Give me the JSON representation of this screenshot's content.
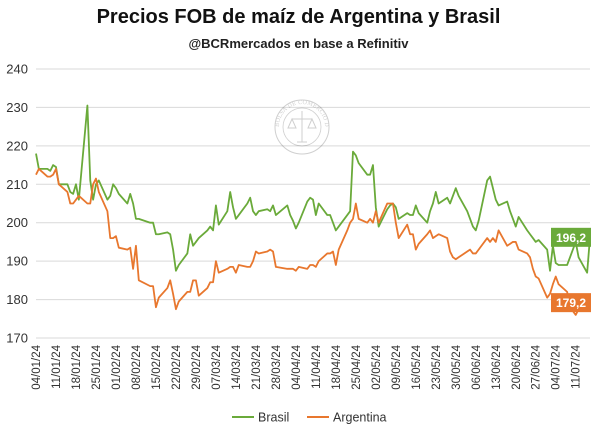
{
  "header": {
    "title": "Precios FOB de maíz de Argentina y Brasil",
    "subtitle": "@BCRmercados en base a Refinitiv"
  },
  "watermark": {
    "text": "BOLSA DE COMERCIO DE ROSARIO"
  },
  "chart_data": {
    "type": "line",
    "title": "Precios FOB de maíz de Argentina y Brasil",
    "xlabel": "",
    "ylabel": "",
    "ylim": [
      170,
      240
    ],
    "yticks": [
      170,
      180,
      190,
      200,
      210,
      220,
      230,
      240
    ],
    "x_start": "2024-01-04",
    "x_end": "2024-07-16",
    "x_ticks": [
      "04/01/24",
      "11/01/24",
      "18/01/24",
      "25/01/24",
      "01/02/24",
      "08/02/24",
      "15/02/24",
      "22/02/24",
      "29/02/24",
      "07/03/24",
      "14/03/24",
      "21/03/24",
      "28/03/24",
      "04/04/24",
      "11/04/24",
      "18/04/24",
      "25/04/24",
      "02/05/24",
      "09/05/24",
      "16/05/24",
      "23/05/24",
      "30/05/24",
      "06/06/24",
      "13/06/24",
      "20/06/24",
      "27/06/24",
      "04/07/24",
      "11/07/24"
    ],
    "grid": "horizontal",
    "legend_position": "bottom",
    "series": [
      {
        "name": "Brasil",
        "color": "#6aaa3a",
        "end_label": "196,2",
        "points": [
          [
            "2024-01-04",
            218
          ],
          [
            "2024-01-05",
            214
          ],
          [
            "2024-01-08",
            214
          ],
          [
            "2024-01-09",
            213.5
          ],
          [
            "2024-01-10",
            215
          ],
          [
            "2024-01-11",
            214.5
          ],
          [
            "2024-01-12",
            210
          ],
          [
            "2024-01-15",
            210
          ],
          [
            "2024-01-16",
            208
          ],
          [
            "2024-01-17",
            207.5
          ],
          [
            "2024-01-18",
            210
          ],
          [
            "2024-01-19",
            206
          ],
          [
            "2024-01-22",
            230.5
          ],
          [
            "2024-01-23",
            211
          ],
          [
            "2024-01-24",
            206
          ],
          [
            "2024-01-25",
            210
          ],
          [
            "2024-01-26",
            211
          ],
          [
            "2024-01-29",
            206
          ],
          [
            "2024-01-30",
            207
          ],
          [
            "2024-01-31",
            210
          ],
          [
            "2024-02-01",
            209
          ],
          [
            "2024-02-02",
            207.5
          ],
          [
            "2024-02-05",
            205
          ],
          [
            "2024-02-06",
            207.5
          ],
          [
            "2024-02-07",
            205
          ],
          [
            "2024-02-08",
            201
          ],
          [
            "2024-02-09",
            201
          ],
          [
            "2024-02-13",
            200
          ],
          [
            "2024-02-14",
            200
          ],
          [
            "2024-02-15",
            197
          ],
          [
            "2024-02-16",
            197
          ],
          [
            "2024-02-19",
            197.5
          ],
          [
            "2024-02-20",
            197
          ],
          [
            "2024-02-21",
            193
          ],
          [
            "2024-02-22",
            187.5
          ],
          [
            "2024-02-23",
            189
          ],
          [
            "2024-02-26",
            192
          ],
          [
            "2024-02-27",
            197
          ],
          [
            "2024-02-28",
            194
          ],
          [
            "2024-02-29",
            195
          ],
          [
            "2024-03-01",
            196
          ],
          [
            "2024-03-04",
            198
          ],
          [
            "2024-03-05",
            199
          ],
          [
            "2024-03-06",
            198
          ],
          [
            "2024-03-07",
            204.5
          ],
          [
            "2024-03-08",
            199.5
          ],
          [
            "2024-03-11",
            203
          ],
          [
            "2024-03-12",
            208
          ],
          [
            "2024-03-13",
            204
          ],
          [
            "2024-03-14",
            201
          ],
          [
            "2024-03-15",
            202
          ],
          [
            "2024-03-18",
            205
          ],
          [
            "2024-03-19",
            206.5
          ],
          [
            "2024-03-20",
            203
          ],
          [
            "2024-03-21",
            202
          ],
          [
            "2024-03-22",
            203
          ],
          [
            "2024-03-25",
            203.5
          ],
          [
            "2024-03-26",
            203
          ],
          [
            "2024-03-27",
            204.5
          ],
          [
            "2024-03-28",
            202
          ],
          [
            "2024-04-01",
            204.5
          ],
          [
            "2024-04-02",
            202
          ],
          [
            "2024-04-03",
            200.5
          ],
          [
            "2024-04-04",
            198.5
          ],
          [
            "2024-04-05",
            200
          ],
          [
            "2024-04-08",
            205.5
          ],
          [
            "2024-04-09",
            206.5
          ],
          [
            "2024-04-10",
            206
          ],
          [
            "2024-04-11",
            202
          ],
          [
            "2024-04-12",
            205
          ],
          [
            "2024-04-15",
            202
          ],
          [
            "2024-04-16",
            202
          ],
          [
            "2024-04-17",
            200
          ],
          [
            "2024-04-18",
            198
          ],
          [
            "2024-04-19",
            199
          ],
          [
            "2024-04-22",
            202
          ],
          [
            "2024-04-23",
            203
          ],
          [
            "2024-04-24",
            218.5
          ],
          [
            "2024-04-25",
            217.5
          ],
          [
            "2024-04-26",
            215.5
          ],
          [
            "2024-04-29",
            212.5
          ],
          [
            "2024-04-30",
            212.5
          ],
          [
            "2024-05-01",
            215
          ],
          [
            "2024-05-02",
            204
          ],
          [
            "2024-05-03",
            199
          ],
          [
            "2024-05-06",
            203.5
          ],
          [
            "2024-05-07",
            204.5
          ],
          [
            "2024-05-08",
            205
          ],
          [
            "2024-05-09",
            204
          ],
          [
            "2024-05-10",
            201
          ],
          [
            "2024-05-13",
            202.5
          ],
          [
            "2024-05-14",
            202
          ],
          [
            "2024-05-15",
            202
          ],
          [
            "2024-05-16",
            204.5
          ],
          [
            "2024-05-17",
            202.5
          ],
          [
            "2024-05-20",
            200
          ],
          [
            "2024-05-21",
            203
          ],
          [
            "2024-05-22",
            205
          ],
          [
            "2024-05-23",
            208
          ],
          [
            "2024-05-24",
            205
          ],
          [
            "2024-05-27",
            206.5
          ],
          [
            "2024-05-28",
            205
          ],
          [
            "2024-05-29",
            207
          ],
          [
            "2024-05-30",
            209
          ],
          [
            "2024-05-31",
            207
          ],
          [
            "2024-06-03",
            203
          ],
          [
            "2024-06-04",
            201
          ],
          [
            "2024-06-05",
            199
          ],
          [
            "2024-06-06",
            198
          ],
          [
            "2024-06-07",
            200.5
          ],
          [
            "2024-06-10",
            211
          ],
          [
            "2024-06-11",
            212
          ],
          [
            "2024-06-12",
            209
          ],
          [
            "2024-06-13",
            206
          ],
          [
            "2024-06-14",
            204.5
          ],
          [
            "2024-06-17",
            205.5
          ],
          [
            "2024-06-18",
            203
          ],
          [
            "2024-06-19",
            201
          ],
          [
            "2024-06-20",
            199
          ],
          [
            "2024-06-21",
            201.5
          ],
          [
            "2024-06-24",
            198
          ],
          [
            "2024-06-25",
            197
          ],
          [
            "2024-06-26",
            196
          ],
          [
            "2024-06-27",
            195
          ],
          [
            "2024-06-28",
            195.5
          ],
          [
            "2024-07-01",
            193
          ],
          [
            "2024-07-02",
            187.5
          ],
          [
            "2024-07-03",
            194
          ],
          [
            "2024-07-04",
            189.5
          ],
          [
            "2024-07-05",
            189
          ],
          [
            "2024-07-08",
            189
          ],
          [
            "2024-07-09",
            191
          ],
          [
            "2024-07-10",
            193
          ],
          [
            "2024-07-11",
            195
          ],
          [
            "2024-07-12",
            191
          ],
          [
            "2024-07-15",
            187
          ],
          [
            "2024-07-16",
            196.2
          ]
        ]
      },
      {
        "name": "Argentina",
        "color": "#e8772e",
        "end_label": "179,2",
        "points": [
          [
            "2024-01-04",
            212.5
          ],
          [
            "2024-01-05",
            214
          ],
          [
            "2024-01-08",
            212
          ],
          [
            "2024-01-09",
            212
          ],
          [
            "2024-01-10",
            212.5
          ],
          [
            "2024-01-11",
            214
          ],
          [
            "2024-01-12",
            210
          ],
          [
            "2024-01-15",
            208
          ],
          [
            "2024-01-16",
            205
          ],
          [
            "2024-01-17",
            205
          ],
          [
            "2024-01-18",
            206
          ],
          [
            "2024-01-19",
            207
          ],
          [
            "2024-01-22",
            205
          ],
          [
            "2024-01-23",
            205
          ],
          [
            "2024-01-24",
            210
          ],
          [
            "2024-01-25",
            211.5
          ],
          [
            "2024-01-26",
            208
          ],
          [
            "2024-01-29",
            203
          ],
          [
            "2024-01-30",
            196
          ],
          [
            "2024-01-31",
            196
          ],
          [
            "2024-02-01",
            196.5
          ],
          [
            "2024-02-02",
            193.5
          ],
          [
            "2024-02-05",
            193
          ],
          [
            "2024-02-06",
            193.5
          ],
          [
            "2024-02-07",
            188
          ],
          [
            "2024-02-08",
            194
          ],
          [
            "2024-02-09",
            185
          ],
          [
            "2024-02-13",
            183.5
          ],
          [
            "2024-02-14",
            183.5
          ],
          [
            "2024-02-15",
            178
          ],
          [
            "2024-02-16",
            180.5
          ],
          [
            "2024-02-19",
            183
          ],
          [
            "2024-02-20",
            185
          ],
          [
            "2024-02-21",
            181.5
          ],
          [
            "2024-02-22",
            177.5
          ],
          [
            "2024-02-23",
            179.5
          ],
          [
            "2024-02-26",
            182
          ],
          [
            "2024-02-27",
            182
          ],
          [
            "2024-02-28",
            185
          ],
          [
            "2024-02-29",
            185
          ],
          [
            "2024-03-01",
            181
          ],
          [
            "2024-03-04",
            183
          ],
          [
            "2024-03-05",
            184.5
          ],
          [
            "2024-03-06",
            184.5
          ],
          [
            "2024-03-07",
            190
          ],
          [
            "2024-03-08",
            187
          ],
          [
            "2024-03-11",
            188
          ],
          [
            "2024-03-12",
            188.5
          ],
          [
            "2024-03-13",
            188.5
          ],
          [
            "2024-03-14",
            187
          ],
          [
            "2024-03-15",
            189
          ],
          [
            "2024-03-18",
            188.5
          ],
          [
            "2024-03-19",
            188.5
          ],
          [
            "2024-03-20",
            190
          ],
          [
            "2024-03-21",
            192.5
          ],
          [
            "2024-03-22",
            192
          ],
          [
            "2024-03-25",
            192.5
          ],
          [
            "2024-03-26",
            193
          ],
          [
            "2024-03-27",
            192.5
          ],
          [
            "2024-03-28",
            188.5
          ],
          [
            "2024-04-01",
            188
          ],
          [
            "2024-04-02",
            188
          ],
          [
            "2024-04-03",
            188
          ],
          [
            "2024-04-04",
            187.5
          ],
          [
            "2024-04-05",
            188.5
          ],
          [
            "2024-04-08",
            188
          ],
          [
            "2024-04-09",
            189
          ],
          [
            "2024-04-10",
            189
          ],
          [
            "2024-04-11",
            188.5
          ],
          [
            "2024-04-12",
            190
          ],
          [
            "2024-04-15",
            192
          ],
          [
            "2024-04-16",
            192
          ],
          [
            "2024-04-17",
            192.5
          ],
          [
            "2024-04-18",
            189
          ],
          [
            "2024-04-19",
            193
          ],
          [
            "2024-04-22",
            198
          ],
          [
            "2024-04-23",
            200
          ],
          [
            "2024-04-24",
            201
          ],
          [
            "2024-04-25",
            205
          ],
          [
            "2024-04-26",
            201
          ],
          [
            "2024-04-29",
            200
          ],
          [
            "2024-04-30",
            201
          ],
          [
            "2024-05-01",
            200
          ],
          [
            "2024-05-02",
            203
          ],
          [
            "2024-05-03",
            200
          ],
          [
            "2024-05-06",
            205
          ],
          [
            "2024-05-07",
            205
          ],
          [
            "2024-05-08",
            205
          ],
          [
            "2024-05-09",
            200
          ],
          [
            "2024-05-10",
            196
          ],
          [
            "2024-05-13",
            199.5
          ],
          [
            "2024-05-14",
            197
          ],
          [
            "2024-05-15",
            197
          ],
          [
            "2024-05-16",
            193
          ],
          [
            "2024-05-17",
            194.5
          ],
          [
            "2024-05-20",
            197
          ],
          [
            "2024-05-21",
            198
          ],
          [
            "2024-05-22",
            196
          ],
          [
            "2024-05-23",
            196.5
          ],
          [
            "2024-05-24",
            197
          ],
          [
            "2024-05-27",
            196
          ],
          [
            "2024-05-28",
            192.5
          ],
          [
            "2024-05-29",
            191
          ],
          [
            "2024-05-30",
            190.5
          ],
          [
            "2024-05-31",
            191
          ],
          [
            "2024-06-03",
            192.5
          ],
          [
            "2024-06-04",
            193
          ],
          [
            "2024-06-05",
            192
          ],
          [
            "2024-06-06",
            192
          ],
          [
            "2024-06-07",
            193
          ],
          [
            "2024-06-10",
            196
          ],
          [
            "2024-06-11",
            195
          ],
          [
            "2024-06-12",
            196
          ],
          [
            "2024-06-13",
            195
          ],
          [
            "2024-06-14",
            198
          ],
          [
            "2024-06-17",
            194
          ],
          [
            "2024-06-18",
            194.5
          ],
          [
            "2024-06-19",
            195
          ],
          [
            "2024-06-20",
            195
          ],
          [
            "2024-06-21",
            193
          ],
          [
            "2024-06-24",
            192
          ],
          [
            "2024-06-25",
            191
          ],
          [
            "2024-06-26",
            188
          ],
          [
            "2024-06-27",
            186
          ],
          [
            "2024-06-28",
            185.5
          ],
          [
            "2024-07-01",
            180.5
          ],
          [
            "2024-07-02",
            181.5
          ],
          [
            "2024-07-03",
            184
          ],
          [
            "2024-07-04",
            186
          ],
          [
            "2024-07-05",
            184
          ],
          [
            "2024-07-08",
            182
          ],
          [
            "2024-07-09",
            178
          ],
          [
            "2024-07-10",
            177
          ],
          [
            "2024-07-11",
            176
          ],
          [
            "2024-07-12",
            177.5
          ],
          [
            "2024-07-15",
            178.5
          ],
          [
            "2024-07-16",
            179.2
          ]
        ]
      }
    ]
  }
}
